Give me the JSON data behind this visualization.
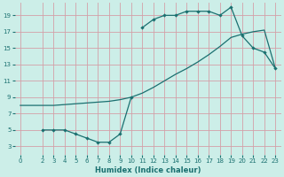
{
  "xlabel": "Humidex (Indice chaleur)",
  "bg_color": "#cceee8",
  "grid_color": "#d4a0a8",
  "line_color": "#1a7070",
  "xlim": [
    -0.5,
    23.5
  ],
  "ylim": [
    2.0,
    20.5
  ],
  "xticks": [
    0,
    2,
    3,
    4,
    5,
    6,
    7,
    8,
    9,
    10,
    11,
    12,
    13,
    14,
    15,
    16,
    17,
    18,
    19,
    20,
    21,
    22,
    23
  ],
  "yticks": [
    3,
    5,
    7,
    9,
    11,
    13,
    15,
    17,
    19
  ],
  "curve_upper_x": [
    11,
    12,
    13,
    14,
    15,
    16,
    17,
    18,
    19,
    20,
    21,
    22,
    23
  ],
  "curve_upper_y": [
    17.5,
    18.5,
    19.0,
    19.0,
    19.5,
    19.5,
    19.5,
    19.0,
    20.0,
    16.5,
    15.0,
    14.5,
    12.5
  ],
  "curve_diag_x": [
    0,
    2,
    3,
    4,
    5,
    6,
    7,
    8,
    9,
    10,
    11,
    12,
    13,
    14,
    15,
    16,
    17,
    18,
    19,
    20,
    21,
    22,
    23
  ],
  "curve_diag_y": [
    8.0,
    8.0,
    8.0,
    8.1,
    8.2,
    8.3,
    8.4,
    8.5,
    8.7,
    9.0,
    9.5,
    10.2,
    11.0,
    11.8,
    12.5,
    13.3,
    14.2,
    15.2,
    16.3,
    16.7,
    17.0,
    17.2,
    12.5
  ],
  "curve_low_x": [
    2,
    3,
    4,
    5,
    6,
    7,
    8,
    9,
    10
  ],
  "curve_low_y": [
    5.0,
    5.0,
    5.0,
    4.5,
    4.0,
    3.5,
    3.5,
    4.5,
    9.0
  ],
  "xlabel_fontsize": 6.0,
  "tick_fontsize": 5.0
}
